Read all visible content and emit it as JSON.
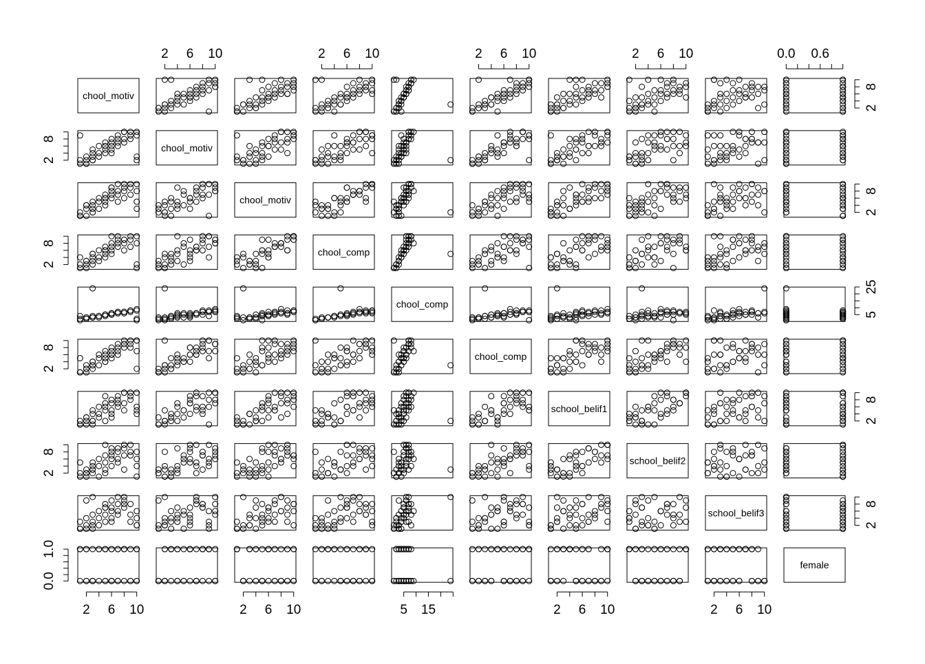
{
  "chart_data": {
    "type": "scatter_matrix",
    "variables": [
      {
        "name": "chool_motiv",
        "lim": [
          0.64,
          10.36
        ],
        "ticks": [
          2,
          4,
          6,
          8,
          10
        ],
        "x_labels": [
          2,
          6,
          10
        ],
        "y_labels": [
          2,
          8
        ],
        "values": [
          1,
          1,
          2,
          2,
          2,
          3,
          3,
          3,
          3,
          4,
          4,
          4,
          5,
          5,
          5,
          5,
          6,
          6,
          6,
          6,
          7,
          7,
          7,
          7,
          8,
          8,
          8,
          9,
          9,
          9,
          10,
          10,
          10,
          1,
          2,
          3,
          5,
          6,
          8,
          10
        ]
      },
      {
        "name": "chool_motiv",
        "lim": [
          0.64,
          10.36
        ],
        "ticks": [
          2,
          4,
          6,
          8,
          10
        ],
        "x_labels": [
          2,
          6,
          10
        ],
        "y_labels": [
          2,
          8
        ],
        "values": [
          1,
          2,
          1,
          3,
          2,
          2,
          4,
          3,
          5,
          3,
          4,
          6,
          4,
          5,
          6,
          7,
          5,
          6,
          7,
          8,
          6,
          7,
          8,
          9,
          7,
          8,
          10,
          8,
          9,
          10,
          9,
          10,
          3,
          9,
          1,
          2,
          6,
          4,
          10,
          2
        ]
      },
      {
        "name": "chool_motiv",
        "lim": [
          0.64,
          10.36
        ],
        "ticks": [
          2,
          4,
          6,
          8,
          10
        ],
        "x_labels": [
          2,
          6,
          10
        ],
        "y_labels": [
          2,
          8
        ],
        "values": [
          2,
          1,
          3,
          1,
          4,
          2,
          3,
          5,
          4,
          6,
          5,
          3,
          4,
          7,
          6,
          5,
          8,
          6,
          7,
          9,
          5,
          8,
          7,
          10,
          9,
          6,
          8,
          10,
          7,
          9,
          10,
          8,
          3,
          1,
          4,
          2,
          6,
          9,
          10,
          5
        ]
      },
      {
        "name": "chool_comp",
        "lim": [
          0.64,
          10.36
        ],
        "ticks": [
          2,
          4,
          6,
          8,
          10
        ],
        "x_labels": [
          2,
          6,
          10
        ],
        "y_labels": [
          2,
          8
        ],
        "values": [
          1,
          2,
          2,
          3,
          1,
          4,
          3,
          5,
          2,
          4,
          6,
          3,
          5,
          7,
          4,
          6,
          8,
          5,
          7,
          6,
          9,
          7,
          8,
          10,
          6,
          9,
          8,
          10,
          7,
          9,
          10,
          8,
          2,
          4,
          3,
          5,
          6,
          10,
          9,
          1
        ]
      },
      {
        "name": "chool_comp",
        "lim": [
          0.08,
          24.92
        ],
        "ticks": [
          5,
          10,
          15,
          20,
          25
        ],
        "x_labels": [
          5,
          15
        ],
        "y_labels": [
          5,
          25
        ],
        "values": [
          1,
          2,
          2,
          3,
          2,
          3,
          3,
          4,
          3,
          4,
          4,
          3,
          5,
          5,
          4,
          5,
          6,
          5,
          6,
          5,
          6,
          6,
          7,
          7,
          6,
          7,
          7,
          8,
          7,
          8,
          8,
          9,
          2,
          4,
          3,
          24,
          5,
          6,
          7,
          1
        ]
      },
      {
        "name": "chool_comp",
        "lim": [
          0.64,
          10.36
        ],
        "ticks": [
          2,
          4,
          6,
          8,
          10
        ],
        "x_labels": [
          2,
          6,
          10
        ],
        "y_labels": [
          2,
          8
        ],
        "values": [
          1,
          1,
          2,
          2,
          3,
          2,
          4,
          3,
          4,
          5,
          3,
          6,
          5,
          4,
          6,
          7,
          5,
          8,
          6,
          7,
          8,
          6,
          9,
          7,
          8,
          10,
          9,
          8,
          10,
          9,
          10,
          7,
          2,
          5,
          1,
          3,
          4,
          6,
          9,
          10
        ]
      },
      {
        "name": "school_belif1",
        "lim": [
          0.64,
          10.36
        ],
        "ticks": [
          2,
          4,
          6,
          8,
          10
        ],
        "x_labels": [
          2,
          6,
          10
        ],
        "y_labels": [
          2,
          8
        ],
        "values": [
          1,
          2,
          1,
          3,
          2,
          1,
          4,
          2,
          5,
          3,
          6,
          4,
          2,
          5,
          7,
          6,
          3,
          8,
          5,
          4,
          7,
          9,
          6,
          8,
          10,
          5,
          7,
          9,
          10,
          8,
          6,
          10,
          4,
          1,
          3,
          2,
          9,
          7,
          10,
          5
        ]
      },
      {
        "name": "school_belif2",
        "lim": [
          0.64,
          10.36
        ],
        "ticks": [
          2,
          4,
          6,
          8,
          10
        ],
        "x_labels": [
          2,
          6,
          10
        ],
        "y_labels": [
          2,
          8
        ],
        "values": [
          2,
          1,
          3,
          2,
          1,
          4,
          2,
          3,
          5,
          1,
          4,
          6,
          3,
          7,
          5,
          2,
          6,
          8,
          4,
          7,
          9,
          5,
          8,
          6,
          10,
          3,
          9,
          7,
          10,
          8,
          4,
          6,
          1,
          5,
          2,
          3,
          10,
          9,
          7,
          8
        ]
      },
      {
        "name": "school_belif3",
        "lim": [
          0.64,
          10.36
        ],
        "ticks": [
          2,
          4,
          6,
          8,
          10
        ],
        "x_labels": [
          2,
          6,
          10
        ],
        "y_labels": [
          2,
          8
        ],
        "values": [
          1,
          3,
          2,
          1,
          4,
          2,
          5,
          3,
          1,
          6,
          4,
          2,
          7,
          5,
          3,
          8,
          6,
          4,
          9,
          7,
          5,
          10,
          8,
          6,
          9,
          7,
          10,
          8,
          3,
          5,
          2,
          6,
          4,
          1,
          9,
          10,
          7,
          3,
          8,
          2
        ]
      },
      {
        "name": "female",
        "lim": [
          -0.04,
          1.04
        ],
        "ticks": [
          {
            "value": 0,
            "label": "0.0"
          },
          0.2,
          0.4,
          0.6,
          0.8,
          {
            "value": 1,
            "label": "1.0"
          }
        ],
        "x_labels": [
          {
            "value": 0,
            "label": "0.0"
          },
          0.6
        ],
        "y_labels": [
          {
            "value": 0,
            "label": "0.0"
          },
          {
            "value": 1,
            "label": "1.0"
          }
        ],
        "values": [
          0,
          1,
          0,
          1,
          1,
          0,
          1,
          0,
          0,
          1,
          0,
          1,
          1,
          0,
          1,
          0,
          1,
          0,
          0,
          1,
          1,
          0,
          1,
          0,
          1,
          1,
          0,
          0,
          1,
          0,
          1,
          0,
          1,
          1,
          0,
          0,
          1,
          0,
          1,
          0
        ]
      }
    ]
  }
}
